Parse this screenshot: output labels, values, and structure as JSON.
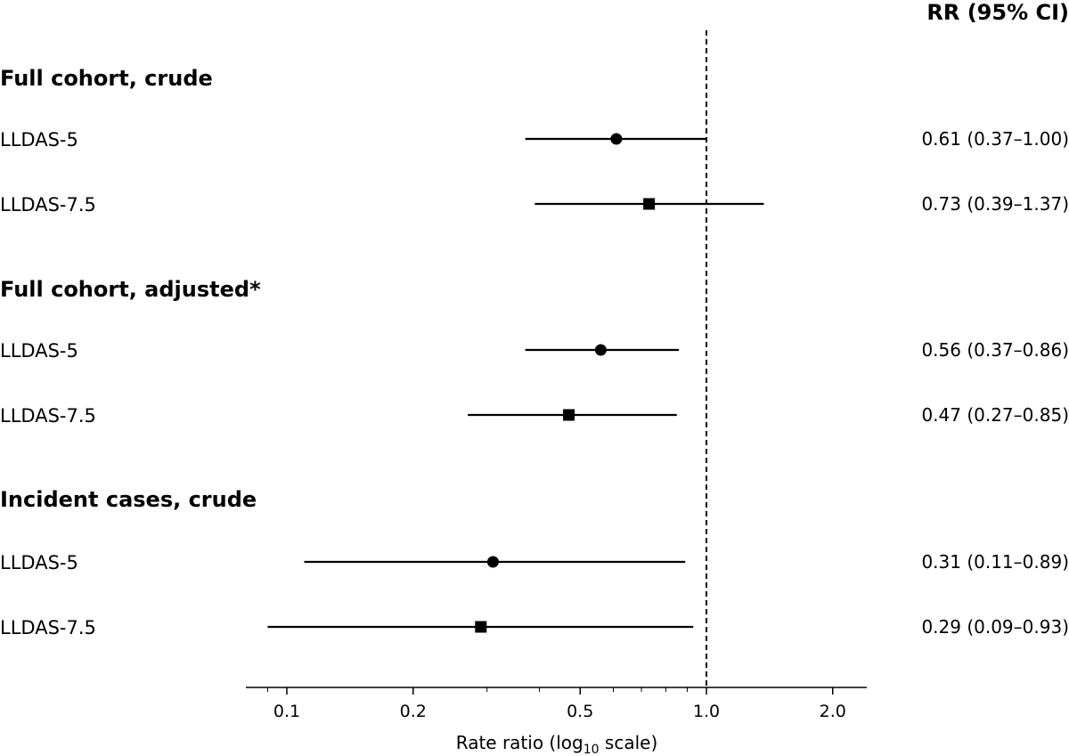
{
  "chart_data": {
    "type": "forest",
    "x_scale": "log10",
    "xlabel_main": "Rate ratio (log",
    "xlabel_sub": "10",
    "xlabel_end": " scale)",
    "xlim": [
      0.08,
      2.6
    ],
    "xticks": [
      0.1,
      0.2,
      0.5,
      1.0,
      2.0
    ],
    "xtick_labels": [
      "0.1",
      "0.2",
      "0.5",
      "1.0",
      "2.0"
    ],
    "reference_line": 1.0,
    "rr_header": "RR (95% CI)",
    "groups": [
      {
        "title": "Full cohort, crude",
        "rows": [
          {
            "label": "LLDAS-5",
            "marker": "circle",
            "estimate": 0.61,
            "lower": 0.37,
            "upper": 1.0,
            "text": "0.61 (0.37–1.00)"
          },
          {
            "label": "LLDAS-7.5",
            "marker": "square",
            "estimate": 0.73,
            "lower": 0.39,
            "upper": 1.37,
            "text": "0.73 (0.39–1.37)"
          }
        ]
      },
      {
        "title": "Full cohort, adjusted*",
        "rows": [
          {
            "label": "LLDAS-5",
            "marker": "circle",
            "estimate": 0.56,
            "lower": 0.37,
            "upper": 0.86,
            "text": "0.56 (0.37–0.86)"
          },
          {
            "label": "LLDAS-7.5",
            "marker": "square",
            "estimate": 0.47,
            "lower": 0.27,
            "upper": 0.85,
            "text": "0.47 (0.27–0.85)"
          }
        ]
      },
      {
        "title": "Incident cases, crude",
        "rows": [
          {
            "label": "LLDAS-5",
            "marker": "circle",
            "estimate": 0.31,
            "lower": 0.11,
            "upper": 0.89,
            "text": "0.31 (0.11–0.89)"
          },
          {
            "label": "LLDAS-7.5",
            "marker": "square",
            "estimate": 0.29,
            "lower": 0.09,
            "upper": 0.93,
            "text": "0.29 (0.09–0.93)"
          }
        ]
      }
    ]
  }
}
